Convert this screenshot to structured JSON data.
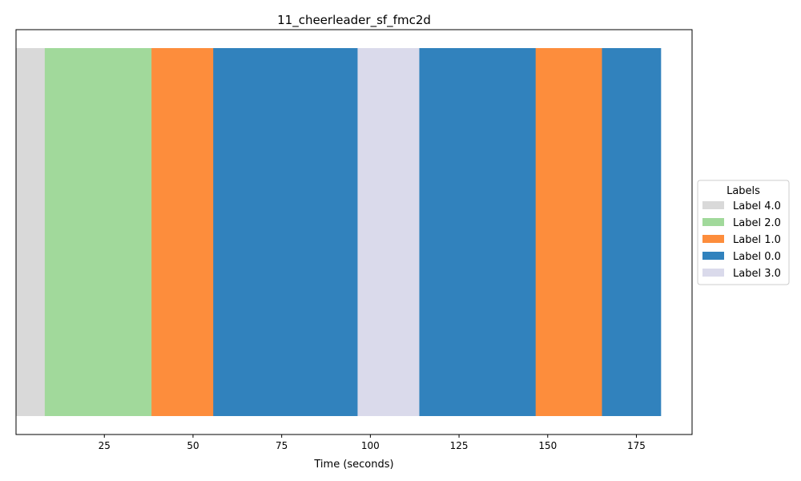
{
  "chart_data": {
    "type": "bar",
    "title": "11_cheerleader_sf_fmc2d",
    "xlabel": "Time (seconds)",
    "ylabel": "",
    "xlim": [
      0.1,
      190.7
    ],
    "xticks": [
      25,
      50,
      75,
      100,
      125,
      150,
      175
    ],
    "grid": false,
    "legend": {
      "title": "Labels",
      "placement": "center-right outside",
      "entries": [
        {
          "name": "Label 4.0",
          "color": "#d9d9d9"
        },
        {
          "name": "Label 2.0",
          "color": "#a1d99b"
        },
        {
          "name": "Label 1.0",
          "color": "#fd8d3c"
        },
        {
          "name": "Label 0.0",
          "color": "#3182bd"
        },
        {
          "name": "Label 3.0",
          "color": "#dadaeb"
        }
      ]
    },
    "segments": [
      {
        "start": 0.1,
        "end": 8.2,
        "label": "Label 4.0",
        "color": "#d9d9d9"
      },
      {
        "start": 8.2,
        "end": 38.3,
        "label": "Label 2.0",
        "color": "#a1d99b"
      },
      {
        "start": 38.3,
        "end": 55.7,
        "label": "Label 1.0",
        "color": "#fd8d3c"
      },
      {
        "start": 55.7,
        "end": 96.4,
        "label": "Label 0.0",
        "color": "#3182bd"
      },
      {
        "start": 96.4,
        "end": 113.8,
        "label": "Label 3.0",
        "color": "#dadaeb"
      },
      {
        "start": 113.8,
        "end": 146.6,
        "label": "Label 0.0",
        "color": "#3182bd"
      },
      {
        "start": 146.6,
        "end": 165.3,
        "label": "Label 1.0",
        "color": "#fd8d3c"
      },
      {
        "start": 165.3,
        "end": 181.9,
        "label": "Label 0.0",
        "color": "#3182bd"
      }
    ]
  }
}
